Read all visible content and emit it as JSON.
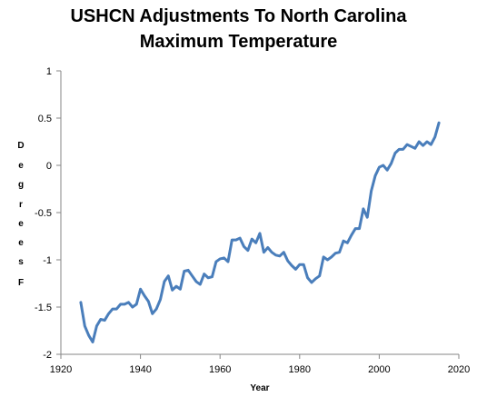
{
  "chart_data": {
    "type": "line",
    "title_lines": [
      "USHCN Adjustments To North Carolina",
      "Maximum Temperature"
    ],
    "xlabel": "Year",
    "ylabel_letters": [
      "D",
      "e",
      "g",
      "r",
      "e",
      "e",
      "s",
      "",
      "F"
    ],
    "xlim": [
      1920,
      2020
    ],
    "ylim": [
      -2,
      1
    ],
    "x_ticks": [
      1920,
      1940,
      1960,
      1980,
      2000,
      2020
    ],
    "y_ticks": [
      1,
      0.5,
      0,
      -0.5,
      -1,
      -1.5,
      -2
    ],
    "y_tick_labels": [
      "1",
      "0.5",
      "0",
      "-0.5",
      "-1",
      "-1.5",
      "-2"
    ],
    "grid": false,
    "line_color": "#4a7ebb",
    "series": [
      {
        "x": [
          1925,
          1926,
          1927,
          1928,
          1929,
          1930,
          1931,
          1932,
          1933,
          1934,
          1935,
          1936,
          1937,
          1938,
          1939,
          1940,
          1941,
          1942,
          1943,
          1944,
          1945,
          1946,
          1947,
          1948,
          1949,
          1950,
          1951,
          1952,
          1953,
          1954,
          1955,
          1956,
          1957,
          1958,
          1959,
          1960,
          1961,
          1962,
          1963,
          1964,
          1965,
          1966,
          1967,
          1968,
          1969,
          1970,
          1971,
          1972,
          1973,
          1974,
          1975,
          1976,
          1977,
          1978,
          1979,
          1980,
          1981,
          1982,
          1983,
          1984,
          1985,
          1986,
          1987,
          1988,
          1989,
          1990,
          1991,
          1992,
          1993,
          1994,
          1995,
          1996,
          1997,
          1998,
          1999,
          2000,
          2001,
          2002,
          2003,
          2004,
          2005,
          2006,
          2007,
          2008,
          2009,
          2010,
          2011,
          2012,
          2013,
          2014,
          2015
        ],
        "y": [
          -1.45,
          -1.7,
          -1.8,
          -1.87,
          -1.7,
          -1.63,
          -1.64,
          -1.57,
          -1.52,
          -1.52,
          -1.47,
          -1.47,
          -1.45,
          -1.5,
          -1.47,
          -1.31,
          -1.38,
          -1.44,
          -1.57,
          -1.52,
          -1.42,
          -1.23,
          -1.17,
          -1.32,
          -1.28,
          -1.31,
          -1.12,
          -1.11,
          -1.17,
          -1.23,
          -1.26,
          -1.15,
          -1.19,
          -1.18,
          -1.02,
          -0.99,
          -0.98,
          -1.02,
          -0.79,
          -0.79,
          -0.77,
          -0.86,
          -0.9,
          -0.78,
          -0.82,
          -0.72,
          -0.92,
          -0.87,
          -0.92,
          -0.95,
          -0.96,
          -0.92,
          -1.01,
          -1.06,
          -1.1,
          -1.05,
          -1.05,
          -1.19,
          -1.24,
          -1.2,
          -1.17,
          -0.97,
          -1.0,
          -0.97,
          -0.93,
          -0.92,
          -0.8,
          -0.82,
          -0.74,
          -0.67,
          -0.67,
          -0.46,
          -0.55,
          -0.27,
          -0.11,
          -0.02,
          0.0,
          -0.05,
          0.02,
          0.13,
          0.17,
          0.17,
          0.22,
          0.2,
          0.18,
          0.25,
          0.21,
          0.25,
          0.22,
          0.3,
          0.45
        ]
      }
    ]
  }
}
